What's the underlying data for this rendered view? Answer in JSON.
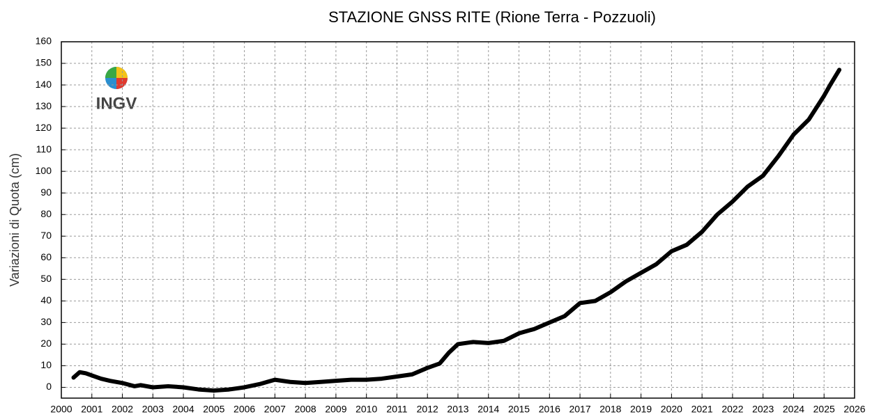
{
  "chart_data": {
    "type": "line",
    "title": "STAZIONE GNSS RITE (Rione Terra - Pozzuoli)",
    "y_label": "Variazioni di Quota (cm)",
    "logo_text": "INGV",
    "xlim": [
      2000,
      2026
    ],
    "ylim": [
      -5,
      160
    ],
    "xticks": [
      2000,
      2001,
      2002,
      2003,
      2004,
      2005,
      2006,
      2007,
      2008,
      2009,
      2010,
      2011,
      2012,
      2013,
      2014,
      2015,
      2016,
      2017,
      2018,
      2019,
      2020,
      2021,
      2022,
      2023,
      2024,
      2025,
      2026
    ],
    "yticks": [
      0,
      10,
      20,
      30,
      40,
      50,
      60,
      70,
      80,
      90,
      100,
      110,
      120,
      130,
      140,
      150,
      160
    ],
    "grid": true,
    "series": [
      {
        "color": "#000000",
        "x": [
          2000.4,
          2000.6,
          2000.8,
          2001.0,
          2001.3,
          2001.6,
          2002.0,
          2002.4,
          2002.6,
          2003.0,
          2003.5,
          2004.0,
          2004.5,
          2005.0,
          2005.5,
          2006.0,
          2006.5,
          2007.0,
          2007.5,
          2008.0,
          2008.5,
          2009.0,
          2009.5,
          2010.0,
          2010.5,
          2011.0,
          2011.5,
          2012.0,
          2012.4,
          2012.7,
          2013.0,
          2013.5,
          2014.0,
          2014.5,
          2015.0,
          2015.5,
          2016.0,
          2016.5,
          2017.0,
          2017.5,
          2018.0,
          2018.5,
          2019.0,
          2019.5,
          2020.0,
          2020.5,
          2021.0,
          2021.5,
          2022.0,
          2022.5,
          2023.0,
          2023.5,
          2024.0,
          2024.5,
          2025.0,
          2025.2,
          2025.5
        ],
        "values": [
          4.5,
          7,
          6.5,
          5.5,
          4,
          3,
          2,
          0.5,
          1,
          0,
          0.5,
          0,
          -1,
          -1.5,
          -1,
          0,
          1.5,
          3.5,
          2.5,
          2,
          2.5,
          3,
          3.5,
          3.5,
          4,
          5,
          6,
          9,
          11,
          16,
          20,
          21,
          20.5,
          21.5,
          25,
          27,
          30,
          33,
          39,
          40,
          44,
          49,
          53,
          57,
          63,
          66,
          72,
          80,
          86,
          93,
          98,
          107,
          117,
          124,
          135,
          140,
          147
        ]
      }
    ]
  }
}
